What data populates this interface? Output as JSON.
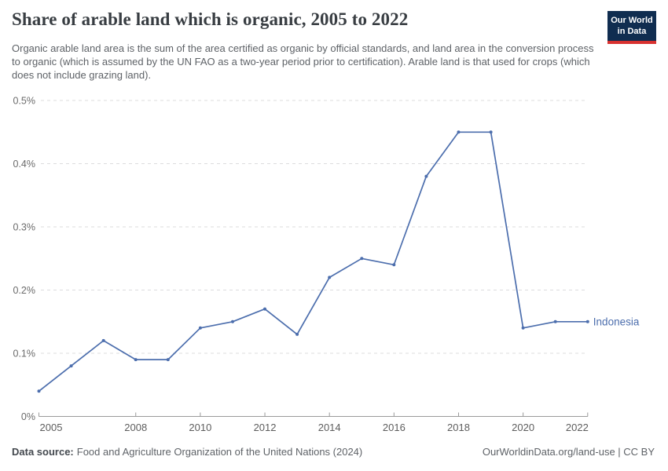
{
  "header": {
    "title": "Share of arable land which is organic, 2005 to 2022",
    "subtitle_lines": [
      "Organic arable land area is the sum of the area certified as organic by official standards, and land area in the",
      "conversion process to organic (which is assumed by the UN FAO as a two-year period prior to certification).",
      "Arable land is that used for crops (which does not include grazing land)."
    ],
    "logo": {
      "line1": "Our World",
      "line2": "in Data"
    }
  },
  "chart_data": {
    "type": "line",
    "title": "Share of arable land which is organic, 2005 to 2022",
    "xlabel": "",
    "ylabel": "",
    "unit": "%",
    "xlim": [
      2005,
      2022
    ],
    "ylim": [
      0,
      0.5
    ],
    "grid": "horizontal-dashed",
    "legend_position": "end-of-line-label",
    "x_tick_years": [
      2005,
      2008,
      2010,
      2012,
      2014,
      2016,
      2018,
      2020,
      2022
    ],
    "x_tick_labels": [
      "2005",
      "2008",
      "2010",
      "2012",
      "2014",
      "2016",
      "2018",
      "2020",
      "2022"
    ],
    "y_tick_values": [
      0,
      0.1,
      0.2,
      0.3,
      0.4,
      0.5
    ],
    "y_tick_labels": [
      "0%",
      "0.1%",
      "0.2%",
      "0.3%",
      "0.4%",
      "0.5%"
    ],
    "series": [
      {
        "name": "Indonesia",
        "color": "#4c6ead",
        "x": [
          2005,
          2006,
          2007,
          2008,
          2009,
          2010,
          2011,
          2012,
          2013,
          2014,
          2015,
          2016,
          2017,
          2018,
          2019,
          2020,
          2021,
          2022
        ],
        "values": [
          0.04,
          0.08,
          0.12,
          0.09,
          0.09,
          0.14,
          0.15,
          0.17,
          0.13,
          0.22,
          0.25,
          0.24,
          0.38,
          0.45,
          0.45,
          0.14,
          0.15,
          0.15
        ]
      }
    ]
  },
  "footer": {
    "source_label": "Data source:",
    "source_text": "Food and Agriculture Organization of the United Nations (2024)",
    "attribution": "OurWorldinData.org/land-use | CC BY"
  },
  "colors": {
    "line": "#4c6ead",
    "axis": "#9a9a9a",
    "gridline": "#dcdcde",
    "y_tick_label": "#6b6b6b",
    "x_tick_label": "#5d5d5d",
    "logo_bg": "#102d50",
    "logo_bar": "#d8312f",
    "title": "#383d42",
    "subtitle": "#5e6267"
  }
}
